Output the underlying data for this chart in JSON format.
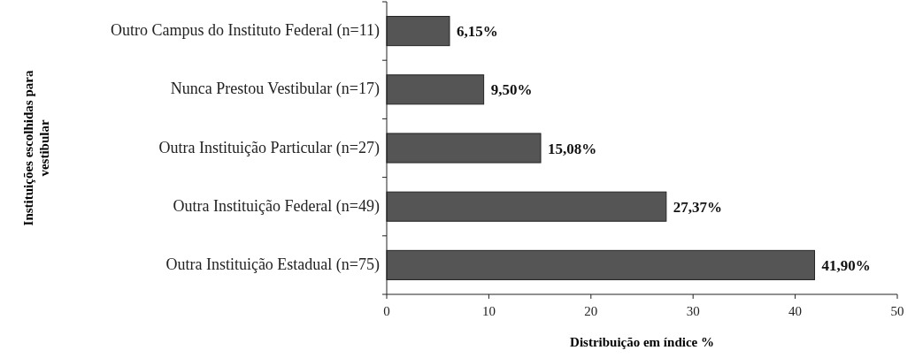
{
  "chart_data": {
    "type": "bar",
    "orientation": "horizontal",
    "categories": [
      "Outro Campus do Instituto Federal (n=11)",
      "Nunca Prestou Vestibular (n=17)",
      "Outra Instituição Particular (n=27)",
      "Outra Instituição Federal (n=49)",
      "Outra Instituição Estadual (n=75)"
    ],
    "values": [
      6.15,
      9.5,
      15.08,
      27.37,
      41.9
    ],
    "value_labels": [
      "6,15%",
      "9,50%",
      "15,08%",
      "27,37%",
      "41,90%"
    ],
    "color": "#555555",
    "xlim": [
      0,
      50
    ],
    "xticks": [
      0,
      10,
      20,
      30,
      40,
      50
    ],
    "grid": false,
    "xlabel": "Distribuição em índice %",
    "ylabel": "Instituições escolhidas para vestibular"
  }
}
